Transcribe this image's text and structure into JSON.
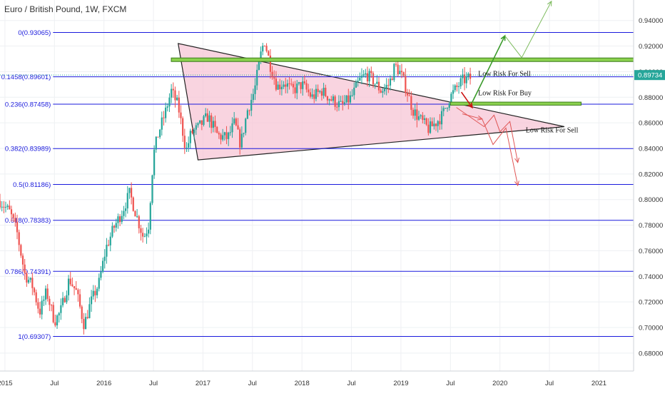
{
  "chart_data": {
    "type": "candlestick",
    "title": "Euro / British Pound, 1W, FXCM",
    "symbol_price": "0.89734",
    "ylim": [
      0.666,
      0.956
    ],
    "xlim": [
      2014.95,
      2021.35
    ],
    "y_ticks": [
      "0.94000",
      "0.92000",
      "0.90000",
      "0.88000",
      "0.86000",
      "0.84000",
      "0.82000",
      "0.80000",
      "0.78000",
      "0.76000",
      "0.74000",
      "0.72000",
      "0.70000",
      "0.68000"
    ],
    "y_tick_values": [
      0.94,
      0.92,
      0.9,
      0.88,
      0.86,
      0.84,
      0.82,
      0.8,
      0.78,
      0.76,
      0.74,
      0.72,
      0.7,
      0.68
    ],
    "x_ticks": [
      {
        "label": "2015",
        "t": 2015.0
      },
      {
        "label": "Jul",
        "t": 2015.5
      },
      {
        "label": "2016",
        "t": 2016.0
      },
      {
        "label": "Jul",
        "t": 2016.5
      },
      {
        "label": "2017",
        "t": 2017.0
      },
      {
        "label": "Jul",
        "t": 2017.5
      },
      {
        "label": "2018",
        "t": 2018.0
      },
      {
        "label": "Jul",
        "t": 2018.5
      },
      {
        "label": "2019",
        "t": 2019.0
      },
      {
        "label": "Jul",
        "t": 2019.5
      },
      {
        "label": "2020",
        "t": 2020.0
      },
      {
        "label": "Jul",
        "t": 2020.5
      },
      {
        "label": "2021",
        "t": 2021.0
      }
    ],
    "fib_levels": [
      {
        "label": "0(0.93065)",
        "value": 0.93065
      },
      {
        "label": "0.1458(0.89601)",
        "value": 0.89601
      },
      {
        "label": "0.236(0.87458)",
        "value": 0.87458
      },
      {
        "label": "0.382(0.83989)",
        "value": 0.83989
      },
      {
        "label": "0.5(0.81186)",
        "value": 0.81186
      },
      {
        "label": "0.618(0.78383)",
        "value": 0.78383
      },
      {
        "label": "0.786(0.74391)",
        "value": 0.74391
      },
      {
        "label": "1(0.69307)",
        "value": 0.69307
      }
    ],
    "fib_range_t": [
      2015.5,
      2021.35
    ],
    "path_keypoints": [
      [
        2014.95,
        0.799
      ],
      [
        2015.05,
        0.79
      ],
      [
        2015.12,
        0.775
      ],
      [
        2015.2,
        0.742
      ],
      [
        2015.28,
        0.732
      ],
      [
        2015.35,
        0.712
      ],
      [
        2015.42,
        0.728
      ],
      [
        2015.5,
        0.705
      ],
      [
        2015.56,
        0.712
      ],
      [
        2015.65,
        0.738
      ],
      [
        2015.72,
        0.728
      ],
      [
        2015.8,
        0.702
      ],
      [
        2015.86,
        0.718
      ],
      [
        2015.95,
        0.735
      ],
      [
        2016.02,
        0.762
      ],
      [
        2016.1,
        0.778
      ],
      [
        2016.18,
        0.79
      ],
      [
        2016.26,
        0.805
      ],
      [
        2016.33,
        0.787
      ],
      [
        2016.4,
        0.77
      ],
      [
        2016.45,
        0.78
      ],
      [
        2016.5,
        0.835
      ],
      [
        2016.55,
        0.852
      ],
      [
        2016.62,
        0.868
      ],
      [
        2016.68,
        0.885
      ],
      [
        2016.75,
        0.873
      ],
      [
        2016.83,
        0.838
      ],
      [
        2016.88,
        0.852
      ],
      [
        2016.95,
        0.856
      ],
      [
        2017.05,
        0.865
      ],
      [
        2017.15,
        0.85
      ],
      [
        2017.25,
        0.848
      ],
      [
        2017.32,
        0.86
      ],
      [
        2017.38,
        0.843
      ],
      [
        2017.45,
        0.87
      ],
      [
        2017.52,
        0.885
      ],
      [
        2017.58,
        0.912
      ],
      [
        2017.62,
        0.925
      ],
      [
        2017.68,
        0.905
      ],
      [
        2017.75,
        0.888
      ],
      [
        2017.82,
        0.892
      ],
      [
        2017.9,
        0.885
      ],
      [
        2018.0,
        0.89
      ],
      [
        2018.1,
        0.88
      ],
      [
        2018.2,
        0.885
      ],
      [
        2018.3,
        0.878
      ],
      [
        2018.4,
        0.873
      ],
      [
        2018.5,
        0.88
      ],
      [
        2018.58,
        0.893
      ],
      [
        2018.65,
        0.898
      ],
      [
        2018.72,
        0.893
      ],
      [
        2018.8,
        0.885
      ],
      [
        2018.88,
        0.89
      ],
      [
        2018.94,
        0.905
      ],
      [
        2019.0,
        0.898
      ],
      [
        2019.06,
        0.885
      ],
      [
        2019.12,
        0.87
      ],
      [
        2019.2,
        0.862
      ],
      [
        2019.28,
        0.855
      ],
      [
        2019.35,
        0.86
      ],
      [
        2019.42,
        0.866
      ],
      [
        2019.48,
        0.878
      ],
      [
        2019.55,
        0.886
      ],
      [
        2019.62,
        0.893
      ],
      [
        2019.7,
        0.895
      ]
    ],
    "overlays": {
      "triangle": [
        [
          2016.75,
          0.922
        ],
        [
          2016.95,
          0.831
        ],
        [
          2020.65,
          0.857
        ]
      ],
      "resistance_zone": {
        "t": [
          2016.68,
          2021.35
        ],
        "y": [
          0.9079,
          0.9107
        ]
      },
      "support_zone": {
        "t": [
          2019.5,
          2020.82
        ],
        "y": [
          0.8738,
          0.8762
        ]
      },
      "arrows": [
        {
          "color": "#3a9a2a",
          "w": 1.6,
          "pts": [
            [
              2019.72,
              0.876
            ],
            [
              2020.05,
              0.928
            ]
          ]
        },
        {
          "color": "#7dbb5d",
          "w": 1.0,
          "pts": [
            [
              2020.05,
              0.928
            ],
            [
              2020.22,
              0.911
            ],
            [
              2020.52,
              0.955
            ]
          ]
        },
        {
          "color": "#cc1111",
          "w": 1.6,
          "pts": [
            [
              2019.61,
              0.884
            ],
            [
              2019.72,
              0.872
            ]
          ]
        },
        {
          "color": "#e05555",
          "w": 1.0,
          "pts": [
            [
              2019.56,
              0.872
            ],
            [
              2019.84,
              0.857
            ],
            [
              2019.94,
              0.866
            ],
            [
              2020.0,
              0.853
            ],
            [
              2020.1,
              0.861
            ],
            [
              2020.18,
              0.829
            ]
          ]
        },
        {
          "color": "#e05555",
          "w": 1.0,
          "pts": [
            [
              2019.62,
              0.867
            ],
            [
              2019.82,
              0.863
            ]
          ]
        },
        {
          "color": "#e05555",
          "w": 1.0,
          "pts": [
            [
              2019.82,
              0.863
            ],
            [
              2019.93,
              0.843
            ],
            [
              2020.06,
              0.856
            ],
            [
              2020.18,
              0.811
            ]
          ]
        }
      ],
      "labels": [
        {
          "text": "Low Risk For Sell",
          "t": 2019.78,
          "y": 0.8965
        },
        {
          "text": "Low Risk For Buy",
          "t": 2019.78,
          "y": 0.8815
        },
        {
          "text": "Low Risk For Sell",
          "t": 2020.26,
          "y": 0.8525
        }
      ]
    },
    "colors": {
      "up": "#26a69a",
      "down": "#ef5350",
      "fib": "#1a1add",
      "triangle_fill": "#f7c6d6",
      "zone_fill": "#8bd14e",
      "zone_edge": "#3b7a1c",
      "price_tag": "#26a69a"
    }
  }
}
